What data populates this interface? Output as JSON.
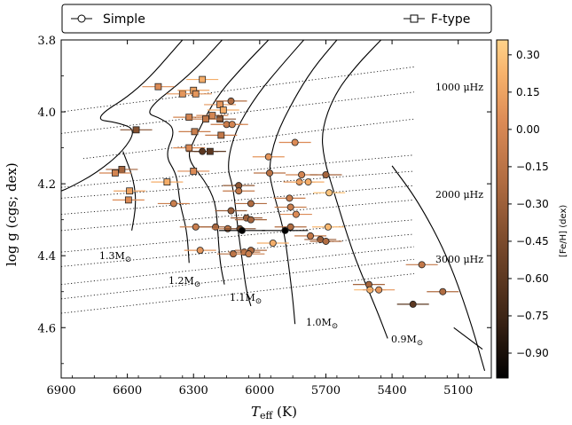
{
  "chart_data": {
    "type": "scatter",
    "xlabel": "T",
    "xlabel_sub": "eff",
    "xlabel_unit": " (K)",
    "ylabel": "log g (cgs; dex)",
    "xlim": [
      6900,
      4950
    ],
    "ylim": [
      4.74,
      3.8
    ],
    "x_reversed": true,
    "y_reversed": true,
    "x_ticks": [
      "6900",
      "6600",
      "6300",
      "6000",
      "5700",
      "5400",
      "5100"
    ],
    "y_ticks": [
      "3.8",
      "4.0",
      "4.2",
      "4.4",
      "4.6"
    ],
    "legend": [
      {
        "label": "Simple",
        "marker": "circle"
      },
      {
        "label": "F-type",
        "marker": "square"
      }
    ],
    "colorbar": {
      "label": "[Fe/H] (dex)",
      "range": [
        -1.0,
        0.36
      ],
      "ticks": [
        "0.30",
        "0.15",
        "0.00",
        "−0.15",
        "−0.30",
        "−0.45",
        "−0.60",
        "−0.75",
        "−0.90"
      ],
      "colors": [
        "#000000",
        "#3d2516",
        "#7a4a2c",
        "#b06c41",
        "#dc8b56",
        "#f7b26b",
        "#ffd38a"
      ]
    },
    "tracks": [
      {
        "label": "1.3M",
        "suffix": "⊙"
      },
      {
        "label": "1.2M",
        "suffix": "⊙"
      },
      {
        "label": "1.1M",
        "suffix": "⊙"
      },
      {
        "label": "1.0M",
        "suffix": "⊙"
      },
      {
        "label": "0.9M",
        "suffix": "⊙"
      }
    ],
    "numax_lines": [
      {
        "label": "1000 μHz"
      },
      {
        "label": "2000 μHz"
      },
      {
        "label": "3000 μHz"
      }
    ],
    "series": [
      {
        "name": "F-type",
        "marker": "square",
        "points": [
          {
            "teff": 6460,
            "logg": 3.93,
            "feh": 0.05
          },
          {
            "teff": 6350,
            "logg": 3.95,
            "feh": 0.1
          },
          {
            "teff": 6300,
            "logg": 3.94,
            "feh": 0.15
          },
          {
            "teff": 6260,
            "logg": 3.91,
            "feh": 0.2
          },
          {
            "teff": 6290,
            "logg": 3.95,
            "feh": 0.1
          },
          {
            "teff": 6180,
            "logg": 3.98,
            "feh": 0.1
          },
          {
            "teff": 6165,
            "logg": 3.995,
            "feh": 0.2
          },
          {
            "teff": 6320,
            "logg": 4.015,
            "feh": 0.0
          },
          {
            "teff": 6215,
            "logg": 4.01,
            "feh": 0.0
          },
          {
            "teff": 6180,
            "logg": 4.02,
            "feh": -0.4
          },
          {
            "teff": 6245,
            "logg": 4.02,
            "feh": -0.1
          },
          {
            "teff": 6295,
            "logg": 4.055,
            "feh": -0.05
          },
          {
            "teff": 6175,
            "logg": 4.065,
            "feh": -0.1
          },
          {
            "teff": 6560,
            "logg": 4.05,
            "feh": -0.4
          },
          {
            "teff": 6320,
            "logg": 4.1,
            "feh": 0.05
          },
          {
            "teff": 6225,
            "logg": 4.11,
            "feh": -0.6
          },
          {
            "teff": 6625,
            "logg": 4.16,
            "feh": -0.25
          },
          {
            "teff": 6655,
            "logg": 4.17,
            "feh": 0.0
          },
          {
            "teff": 6300,
            "logg": 4.165,
            "feh": 0.05
          },
          {
            "teff": 6420,
            "logg": 4.195,
            "feh": 0.2
          },
          {
            "teff": 6590,
            "logg": 4.22,
            "feh": 0.15
          },
          {
            "teff": 6595,
            "logg": 4.245,
            "feh": 0.05
          }
        ]
      },
      {
        "name": "Simple",
        "marker": "circle",
        "points": [
          {
            "teff": 6130,
            "logg": 3.97,
            "feh": -0.2
          },
          {
            "teff": 6150,
            "logg": 4.035,
            "feh": -0.1
          },
          {
            "teff": 6125,
            "logg": 4.035,
            "feh": 0.0
          },
          {
            "teff": 6260,
            "logg": 4.11,
            "feh": -0.6
          },
          {
            "teff": 5840,
            "logg": 4.085,
            "feh": 0.05
          },
          {
            "teff": 5960,
            "logg": 4.125,
            "feh": 0.1
          },
          {
            "teff": 5955,
            "logg": 4.17,
            "feh": -0.15
          },
          {
            "teff": 5810,
            "logg": 4.175,
            "feh": 0.0
          },
          {
            "teff": 5700,
            "logg": 4.175,
            "feh": -0.25
          },
          {
            "teff": 5820,
            "logg": 4.195,
            "feh": 0.1
          },
          {
            "teff": 5780,
            "logg": 4.195,
            "feh": 0.2
          },
          {
            "teff": 6095,
            "logg": 4.205,
            "feh": -0.35
          },
          {
            "teff": 6095,
            "logg": 4.22,
            "feh": -0.1
          },
          {
            "teff": 5685,
            "logg": 4.225,
            "feh": 0.3
          },
          {
            "teff": 5865,
            "logg": 4.24,
            "feh": -0.05
          },
          {
            "teff": 6390,
            "logg": 4.255,
            "feh": -0.05
          },
          {
            "teff": 6040,
            "logg": 4.255,
            "feh": -0.2
          },
          {
            "teff": 5860,
            "logg": 4.265,
            "feh": -0.05
          },
          {
            "teff": 6130,
            "logg": 4.275,
            "feh": -0.3
          },
          {
            "teff": 5835,
            "logg": 4.285,
            "feh": 0.05
          },
          {
            "teff": 6060,
            "logg": 4.295,
            "feh": -0.3
          },
          {
            "teff": 6040,
            "logg": 4.3,
            "feh": -0.25
          },
          {
            "teff": 6290,
            "logg": 4.32,
            "feh": -0.05
          },
          {
            "teff": 6200,
            "logg": 4.32,
            "feh": -0.25
          },
          {
            "teff": 6145,
            "logg": 4.325,
            "feh": -0.1
          },
          {
            "teff": 6090,
            "logg": 4.325,
            "feh": -0.45
          },
          {
            "teff": 5860,
            "logg": 4.32,
            "feh": -0.2
          },
          {
            "teff": 5690,
            "logg": 4.32,
            "feh": 0.25
          },
          {
            "teff": 5770,
            "logg": 4.345,
            "feh": -0.1
          },
          {
            "teff": 5725,
            "logg": 4.355,
            "feh": -0.3
          },
          {
            "teff": 5700,
            "logg": 4.36,
            "feh": -0.2
          },
          {
            "teff": 5940,
            "logg": 4.365,
            "feh": 0.2
          },
          {
            "teff": 6270,
            "logg": 4.385,
            "feh": 0.1
          },
          {
            "teff": 6070,
            "logg": 4.39,
            "feh": -0.1
          },
          {
            "teff": 6040,
            "logg": 4.385,
            "feh": -0.2
          },
          {
            "teff": 6120,
            "logg": 4.395,
            "feh": -0.15
          },
          {
            "teff": 6050,
            "logg": 4.395,
            "feh": -0.05
          },
          {
            "teff": 5265,
            "logg": 4.425,
            "feh": -0.1
          },
          {
            "teff": 5505,
            "logg": 4.48,
            "feh": -0.25
          },
          {
            "teff": 5500,
            "logg": 4.495,
            "feh": 0.25
          },
          {
            "teff": 5460,
            "logg": 4.495,
            "feh": 0.1
          },
          {
            "teff": 5170,
            "logg": 4.5,
            "feh": -0.2
          },
          {
            "teff": 5305,
            "logg": 4.535,
            "feh": -0.6
          },
          {
            "teff": 6080,
            "logg": 4.33,
            "feh": -1.0
          },
          {
            "teff": 5885,
            "logg": 4.33,
            "feh": -1.0
          }
        ]
      }
    ]
  }
}
